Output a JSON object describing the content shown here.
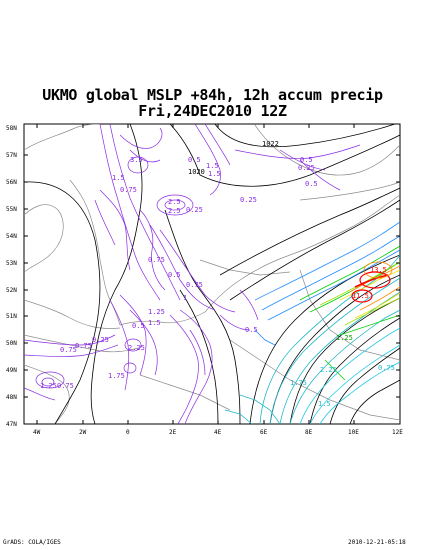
{
  "title": {
    "line1": "UKMO global MSLP +84h, 12h accum precip",
    "line2": "Fri,24DEC2010 12Z"
  },
  "axes": {
    "lat_labels": [
      "58N",
      "57N",
      "56N",
      "55N",
      "54N",
      "53N",
      "52N",
      "51N",
      "50N",
      "49N",
      "48N",
      "47N"
    ],
    "lon_labels": [
      "4W",
      "2W",
      "0",
      "2E",
      "4E",
      "6E",
      "8E",
      "10E",
      "12E"
    ]
  },
  "isobar_labels": [
    "1022",
    "1020"
  ],
  "precip_labels": [
    "0.5",
    "1.5",
    "2.5",
    "0.5",
    "0.25",
    "1.5",
    "2.5",
    "0.25",
    "0.5",
    "3.5",
    "1.5",
    "0.75",
    "0.25",
    "0.75",
    "0.5",
    "1.25",
    "0.75",
    "0.5",
    "0.25",
    "2.25",
    "0.75",
    "1.25",
    "0.75",
    "1.75",
    "0.5",
    "0.75",
    "1",
    "1.5",
    "13.5",
    "11.5",
    "1.25",
    "2.25",
    "1.75",
    "0.75",
    "1.5"
  ],
  "footer": {
    "left": "GrADS: COLA/IGES",
    "right": "2010-12-21-05:18"
  },
  "colors": {
    "precip_contour": "#8a2be2",
    "isobar": "#000000",
    "coastline": "#808080",
    "heavy_precip": [
      "#1fb8c8",
      "#22c9e6",
      "#1e8cff",
      "#00d000",
      "#a0e000",
      "#f0e000",
      "#ff8c00",
      "#ff0000"
    ]
  }
}
